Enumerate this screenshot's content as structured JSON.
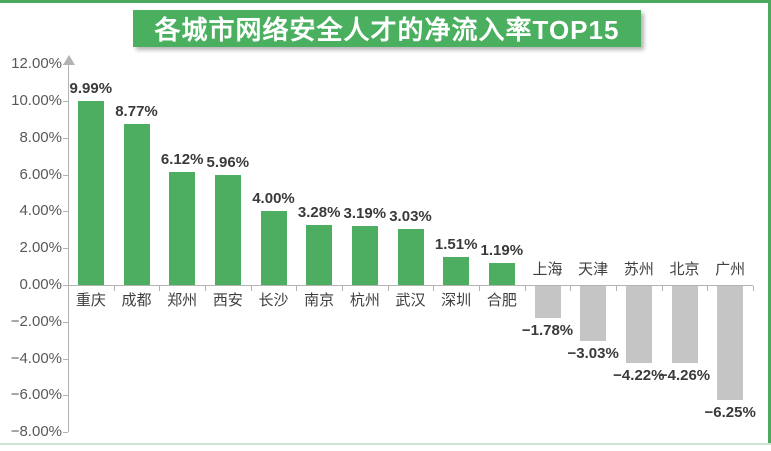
{
  "page": {
    "border_top_color": "#4aa95c",
    "border_right_color": "#4aa95c",
    "border_bottom_color": "#cde3cf",
    "background_color": "#ffffff"
  },
  "banner": {
    "background_color": "#4aaf5e",
    "text_color": "#ffffff"
  },
  "chart_data": {
    "type": "bar",
    "title": "各城市网络安全人才的净流入率TOP15",
    "xlabel": "",
    "ylabel": "",
    "categories": [
      "重庆",
      "成都",
      "郑州",
      "西安",
      "长沙",
      "南京",
      "杭州",
      "武汉",
      "深圳",
      "合肥",
      "上海",
      "天津",
      "苏州",
      "北京",
      "广州"
    ],
    "values": [
      9.99,
      8.77,
      6.12,
      5.96,
      4.0,
      3.28,
      3.19,
      3.03,
      1.51,
      1.19,
      -1.78,
      -3.03,
      -4.22,
      -4.26,
      -6.25
    ],
    "value_labels": [
      "9.99%",
      "8.77%",
      "6.12%",
      "5.96%",
      "4.00%",
      "3.28%",
      "3.19%",
      "3.03%",
      "1.51%",
      "1.19%",
      "−1.78%",
      "−3.03%",
      "−4.22%",
      "−4.26%",
      "−6.25%"
    ],
    "y_axis": {
      "min": -8,
      "max": 12,
      "step": 2,
      "tick_labels": [
        "12.00%",
        "10.00%",
        "8.00%",
        "6.00%",
        "4.00%",
        "2.00%",
        "0.00%",
        "−2.00%",
        "−4.00%",
        "−6.00%",
        "−8.00%"
      ]
    },
    "grid": false,
    "legend": false,
    "colors": {
      "positive_bar": "#4dad60",
      "negative_bar": "#c5c5c5",
      "axis": "#b3b3b3",
      "value_label_text": "#3a3a3a",
      "city_label_text": "#3f3f3f",
      "y_tick_text": "#595959"
    }
  }
}
